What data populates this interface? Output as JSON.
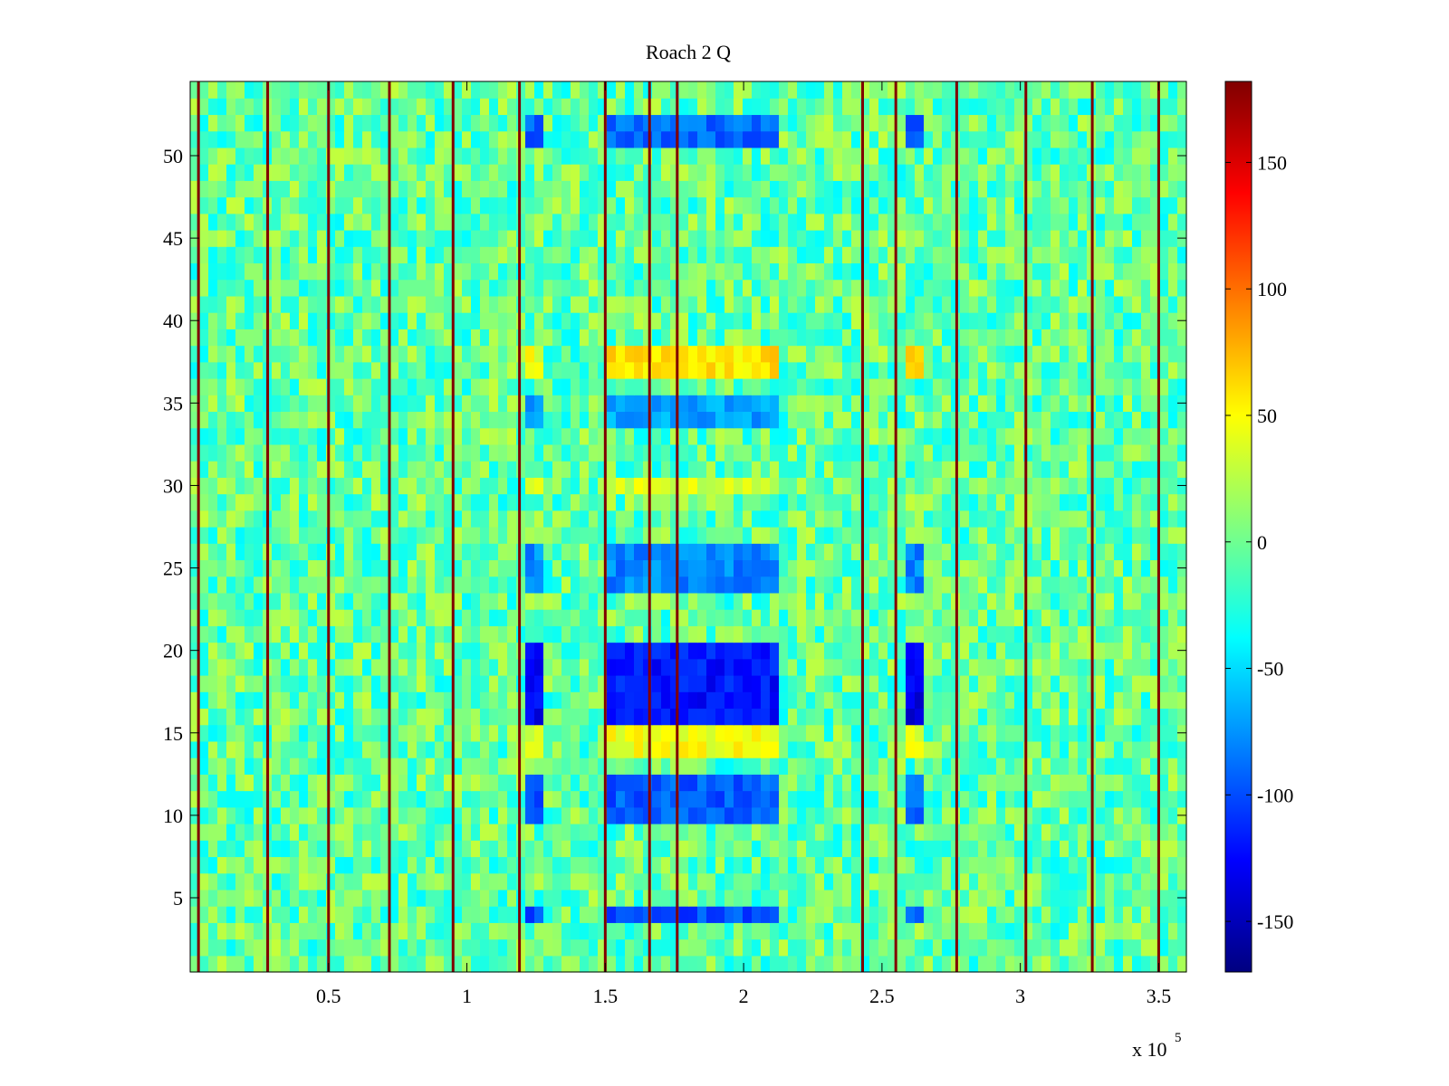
{
  "chart_data": {
    "type": "heatmap",
    "title": "Roach 2 Q",
    "xlabel": "",
    "ylabel": "",
    "x_exponent_label": {
      "base": "x 10",
      "exponent": "5"
    },
    "xlim": [
      0,
      360000
    ],
    "ylim": [
      0.5,
      54.5
    ],
    "x_ticks": [
      50000,
      100000,
      150000,
      200000,
      250000,
      300000,
      350000
    ],
    "x_tick_labels": [
      "0.5",
      "1",
      "1.5",
      "2",
      "2.5",
      "3",
      "3.5"
    ],
    "y_ticks": [
      5,
      10,
      15,
      20,
      25,
      30,
      35,
      40,
      45,
      50
    ],
    "y_tick_labels": [
      "5",
      "10",
      "15",
      "20",
      "25",
      "30",
      "35",
      "40",
      "45",
      "50"
    ],
    "rows": 54,
    "colormap": "jet",
    "clim": [
      -170,
      182
    ],
    "colorbar_ticks": [
      150,
      100,
      50,
      0,
      -50,
      -100,
      -150
    ],
    "colorbar_tick_labels": [
      "150",
      "100",
      "50",
      "0",
      "-50",
      "-100",
      "-150"
    ],
    "background_value_range": [
      -40,
      30
    ],
    "vertical_stripe_positions": [
      3000,
      28000,
      50000,
      72000,
      95000,
      119000,
      150000,
      166000,
      176000,
      243000,
      255000,
      277000,
      302000,
      326000,
      350000
    ],
    "vertical_stripe_value": 182,
    "low_value_bands": [
      {
        "x_range": [
          120000,
          128000
        ],
        "rows": [
          51,
          52
        ],
        "value": -95
      },
      {
        "x_range": [
          152000,
          213000
        ],
        "rows": [
          51,
          52
        ],
        "value": -90
      },
      {
        "x_range": [
          257000,
          266000
        ],
        "rows": [
          51,
          52
        ],
        "value": -90
      },
      {
        "x_range": [
          120000,
          128000
        ],
        "rows": [
          34,
          35
        ],
        "value": -70
      },
      {
        "x_range": [
          152000,
          213000
        ],
        "rows": [
          34,
          35
        ],
        "value": -70
      },
      {
        "x_range": [
          120000,
          128000
        ],
        "rows": [
          24,
          25,
          26
        ],
        "value": -80
      },
      {
        "x_range": [
          152000,
          213000
        ],
        "rows": [
          24,
          25,
          26
        ],
        "value": -80
      },
      {
        "x_range": [
          257000,
          266000
        ],
        "rows": [
          24,
          25,
          26
        ],
        "value": -80
      },
      {
        "x_range": [
          120000,
          128000
        ],
        "rows": [
          16,
          17,
          18,
          19,
          20
        ],
        "value": -130
      },
      {
        "x_range": [
          152000,
          213000
        ],
        "rows": [
          16,
          17,
          18,
          19,
          20
        ],
        "value": -120
      },
      {
        "x_range": [
          257000,
          266000
        ],
        "rows": [
          16,
          17,
          18,
          19,
          20
        ],
        "value": -135
      },
      {
        "x_range": [
          120000,
          128000
        ],
        "rows": [
          10,
          11,
          12
        ],
        "value": -95
      },
      {
        "x_range": [
          152000,
          213000
        ],
        "rows": [
          10,
          11,
          12
        ],
        "value": -95
      },
      {
        "x_range": [
          257000,
          266000
        ],
        "rows": [
          10,
          11,
          12
        ],
        "value": -90
      },
      {
        "x_range": [
          120000,
          128000
        ],
        "rows": [
          4
        ],
        "value": -100
      },
      {
        "x_range": [
          152000,
          213000
        ],
        "rows": [
          4
        ],
        "value": -100
      },
      {
        "x_range": [
          257000,
          266000
        ],
        "rows": [
          4
        ],
        "value": -95
      }
    ],
    "high_value_bands": [
      {
        "x_range": [
          120000,
          128000
        ],
        "rows": [
          37,
          38
        ],
        "value": 45
      },
      {
        "x_range": [
          152000,
          213000
        ],
        "rows": [
          37,
          38
        ],
        "value": 60
      },
      {
        "x_range": [
          257000,
          266000
        ],
        "rows": [
          37,
          38
        ],
        "value": 70
      },
      {
        "x_range": [
          120000,
          128000
        ],
        "rows": [
          14,
          15
        ],
        "value": 40
      },
      {
        "x_range": [
          152000,
          213000
        ],
        "rows": [
          14,
          15
        ],
        "value": 45
      },
      {
        "x_range": [
          257000,
          266000
        ],
        "rows": [
          14,
          15
        ],
        "value": 45
      },
      {
        "x_range": [
          120000,
          128000
        ],
        "rows": [
          30
        ],
        "value": 35
      },
      {
        "x_range": [
          152000,
          213000
        ],
        "rows": [
          30
        ],
        "value": 35
      }
    ]
  }
}
